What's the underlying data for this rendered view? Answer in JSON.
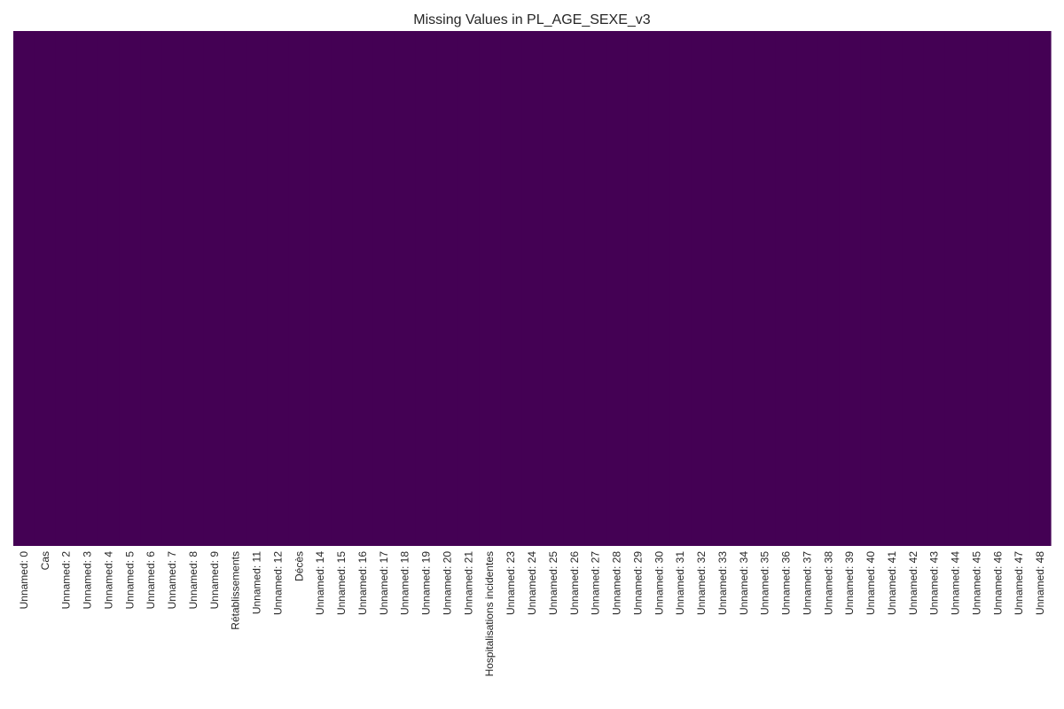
{
  "chart_data": {
    "type": "heatmap",
    "title": "Missing Values in PL_AGE_SEXE_v3",
    "xlabel": "",
    "ylabel": "",
    "x_categories": [
      "Unnamed: 0",
      "Cas",
      "Unnamed: 2",
      "Unnamed: 3",
      "Unnamed: 4",
      "Unnamed: 5",
      "Unnamed: 6",
      "Unnamed: 7",
      "Unnamed: 8",
      "Unnamed: 9",
      "Rétablissements",
      "Unnamed: 11",
      "Unnamed: 12",
      "Décès",
      "Unnamed: 14",
      "Unnamed: 15",
      "Unnamed: 16",
      "Unnamed: 17",
      "Unnamed: 18",
      "Unnamed: 19",
      "Unnamed: 20",
      "Unnamed: 21",
      "Hospitalisations incidentes",
      "Unnamed: 23",
      "Unnamed: 24",
      "Unnamed: 25",
      "Unnamed: 26",
      "Unnamed: 27",
      "Unnamed: 28",
      "Unnamed: 29",
      "Unnamed: 30",
      "Unnamed: 31",
      "Unnamed: 32",
      "Unnamed: 33",
      "Unnamed: 34",
      "Unnamed: 35",
      "Unnamed: 36",
      "Unnamed: 37",
      "Unnamed: 38",
      "Unnamed: 39",
      "Unnamed: 40",
      "Unnamed: 41",
      "Unnamed: 42",
      "Unnamed: 43",
      "Unnamed: 44",
      "Unnamed: 45",
      "Unnamed: 46",
      "Unnamed: 47",
      "Unnamed: 48"
    ],
    "missing": [
      false,
      false,
      false,
      false,
      false,
      false,
      false,
      false,
      false,
      false,
      false,
      false,
      false,
      false,
      false,
      false,
      false,
      false,
      false,
      false,
      false,
      false,
      false,
      false,
      false,
      false,
      false,
      false,
      false,
      false,
      false,
      false,
      false,
      false,
      false,
      false,
      false,
      false,
      false,
      false,
      false,
      false,
      false,
      false,
      false,
      false,
      false,
      false,
      false
    ],
    "colorbar": false,
    "y_ticks_shown": false,
    "grid": false,
    "colors": {
      "present": "#440154",
      "missing": "#fde725"
    }
  }
}
